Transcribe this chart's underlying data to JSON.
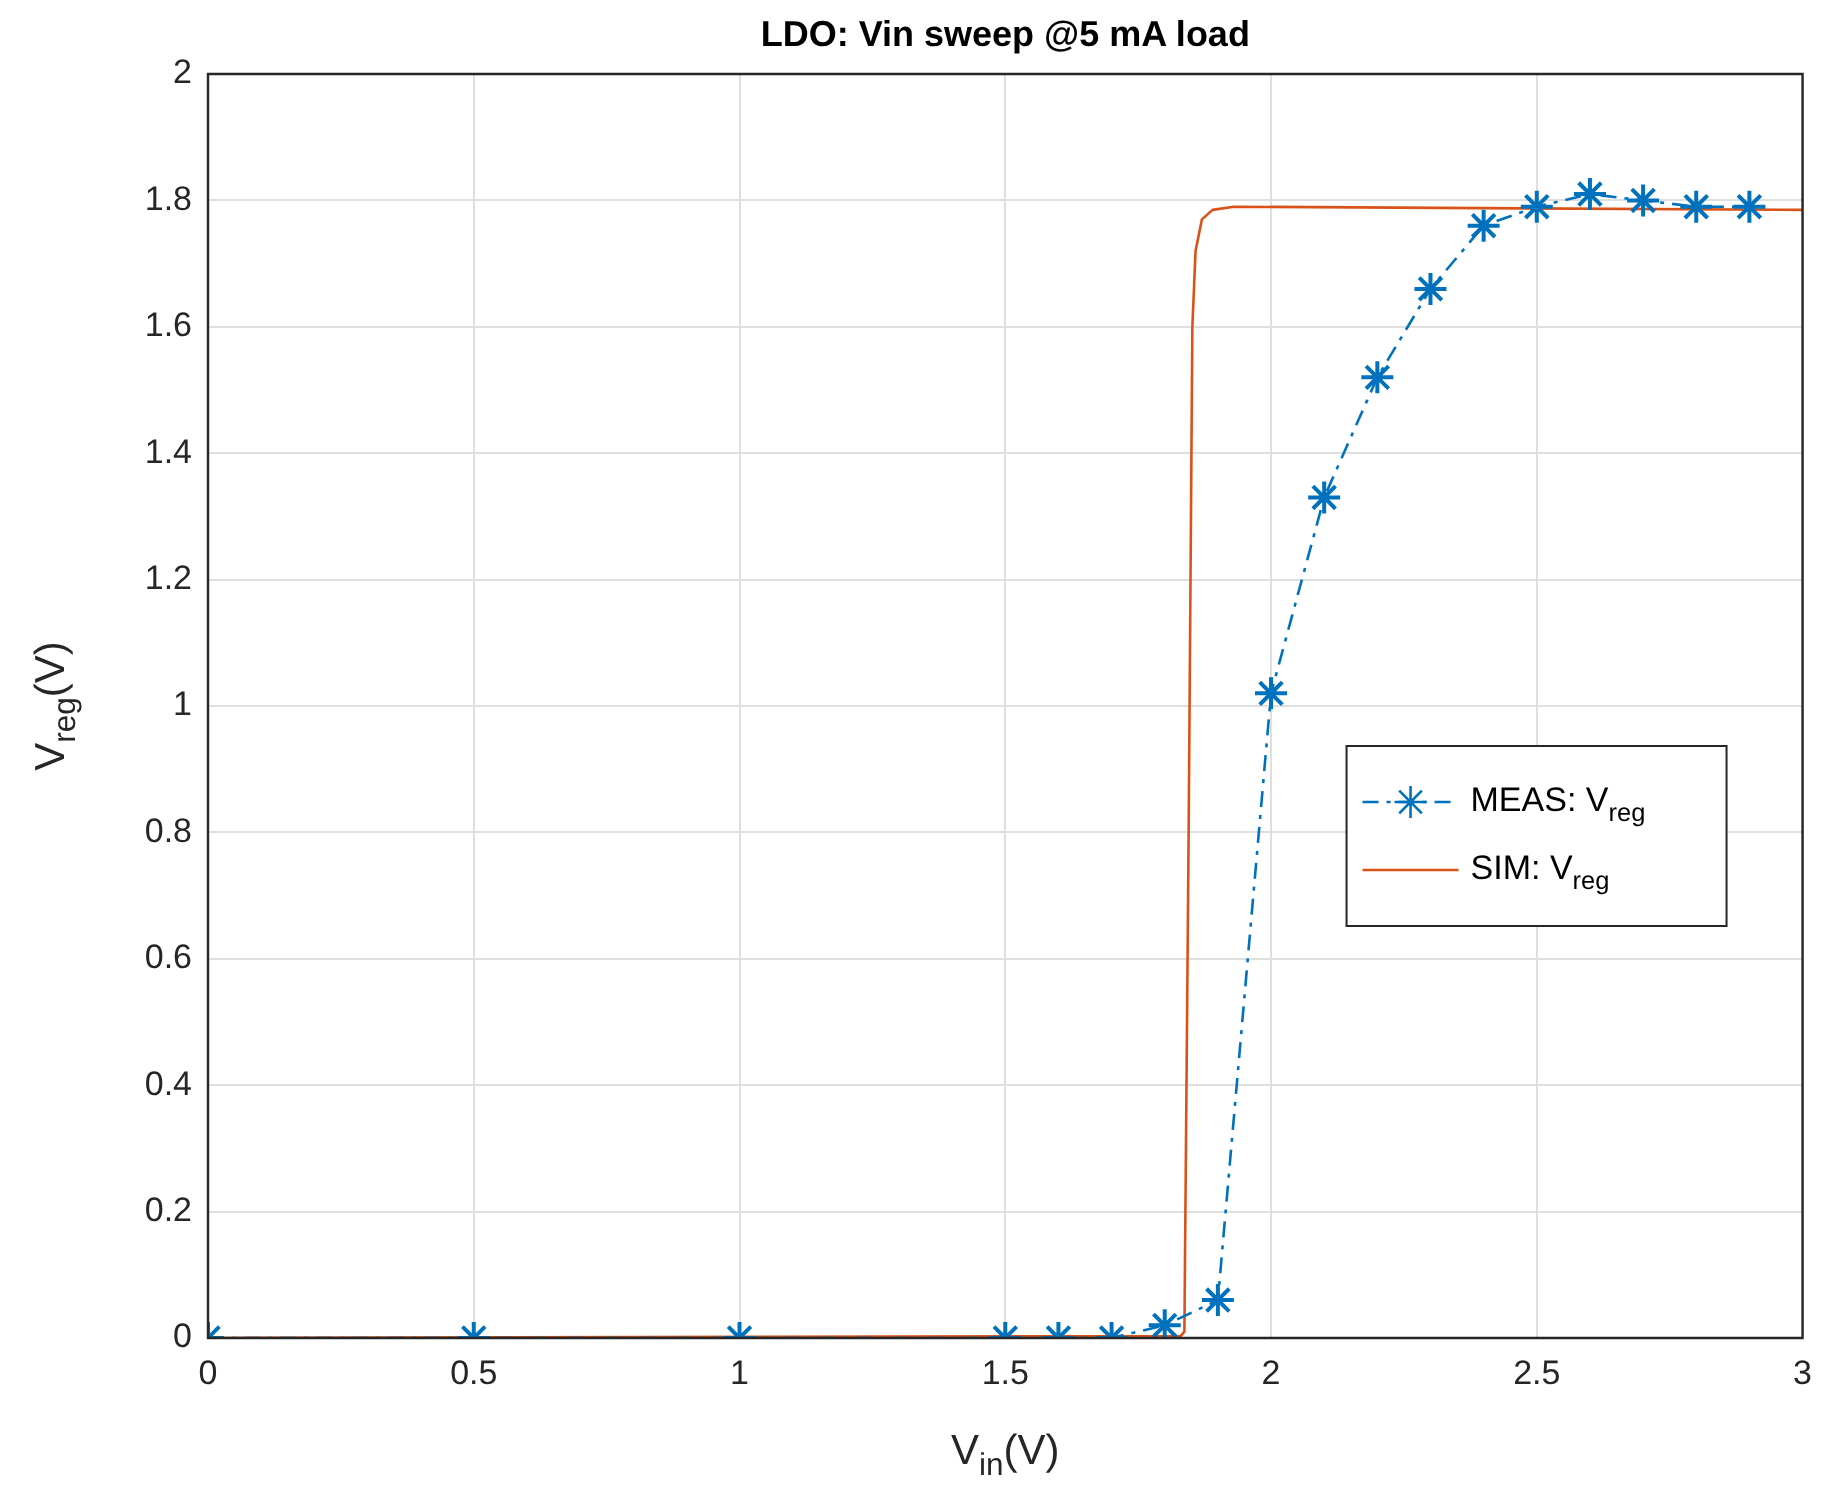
{
  "chart_data": {
    "type": "line",
    "title": "LDO: Vin sweep @5 mA load",
    "xlabel": "V$_{in}$(V)",
    "ylabel": "V$_{reg}$(V)",
    "xlim": [
      0,
      3
    ],
    "xticks": [
      0,
      0.5,
      1,
      1.5,
      2,
      2.5,
      3
    ],
    "ylim": [
      0,
      2
    ],
    "yticks": [
      0,
      0.2,
      0.4,
      0.6,
      0.8,
      1,
      1.2,
      1.4,
      1.6,
      1.8,
      2
    ],
    "grid": true,
    "legend": "right",
    "series": [
      {
        "name": "MEAS: V$_{reg}$",
        "color": "#0072bd",
        "marker": "cross",
        "line_style": "dashed",
        "x": [
          0,
          0.5,
          1,
          1.5,
          1.6,
          1.7,
          1.8,
          1.9,
          2.0,
          2.1,
          2.2,
          2.3,
          2.4,
          2.5,
          2.6,
          2.7,
          2.8,
          2.9
        ],
        "values": [
          0,
          0,
          0,
          0,
          0,
          0,
          0.02,
          0.06,
          1.02,
          1.33,
          1.52,
          1.66,
          1.76,
          1.79,
          1.81,
          1.8,
          1.79,
          1.79
        ]
      },
      {
        "name": "SIM: V$_{reg}$",
        "color": "#d95319",
        "marker": "none",
        "line_style": "solid",
        "x": [
          0,
          1.83,
          1.837,
          1.845,
          1.852,
          1.858,
          1.87,
          1.89,
          1.93,
          3
        ],
        "values": [
          0,
          0.003,
          0.01,
          0.8,
          1.6,
          1.72,
          1.77,
          1.785,
          1.79,
          1.785
        ]
      }
    ]
  }
}
